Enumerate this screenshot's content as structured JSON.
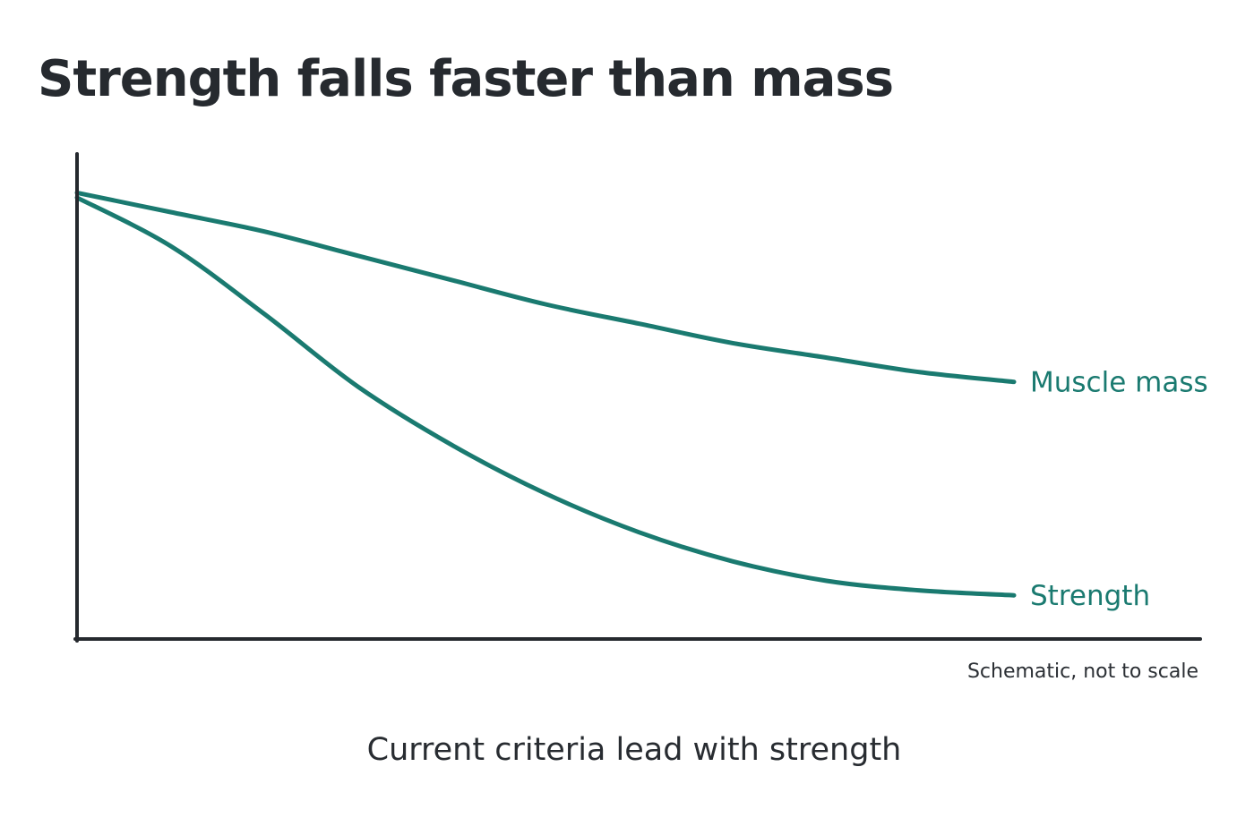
{
  "title": "Strength falls faster than mass",
  "note": "Schematic, not to scale",
  "caption": "Current criteria lead with strength",
  "colors": {
    "series": "#1a7a70",
    "axis": "#25292e",
    "text": "#262a2f"
  },
  "chart_data": {
    "type": "line",
    "title": "Strength falls faster than mass",
    "xlabel": "",
    "ylabel": "",
    "grid": false,
    "legend": "inline-right",
    "x": [
      0,
      0.1,
      0.2,
      0.3,
      0.4,
      0.5,
      0.6,
      0.7,
      0.8,
      0.9,
      1.0
    ],
    "series": [
      {
        "name": "Muscle mass",
        "values": [
          0.92,
          0.88,
          0.84,
          0.79,
          0.74,
          0.69,
          0.65,
          0.61,
          0.58,
          0.55,
          0.53
        ]
      },
      {
        "name": "Strength",
        "values": [
          0.91,
          0.81,
          0.67,
          0.52,
          0.4,
          0.3,
          0.22,
          0.16,
          0.12,
          0.1,
          0.09
        ]
      }
    ],
    "xlim": [
      0,
      1
    ],
    "ylim": [
      0,
      1
    ]
  }
}
